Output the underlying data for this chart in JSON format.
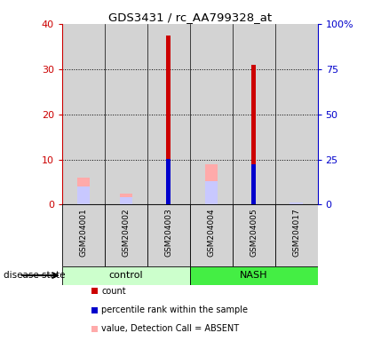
{
  "title": "GDS3431 / rc_AA799328_at",
  "samples": [
    "GSM204001",
    "GSM204002",
    "GSM204003",
    "GSM204004",
    "GSM204005",
    "GSM204017"
  ],
  "groups": [
    "control",
    "control",
    "control",
    "NASH",
    "NASH",
    "NASH"
  ],
  "group_labels": [
    "control",
    "NASH"
  ],
  "count_values": [
    0,
    0,
    37.5,
    0,
    31,
    0
  ],
  "percentile_values": [
    0,
    0,
    25.5,
    0,
    22.5,
    0
  ],
  "value_absent": [
    6,
    2.5,
    0,
    9,
    0,
    0
  ],
  "rank_absent": [
    10,
    4,
    0,
    13,
    0,
    1
  ],
  "ylim_left": [
    0,
    40
  ],
  "ylim_right": [
    0,
    100
  ],
  "yticks_left": [
    0,
    10,
    20,
    30,
    40
  ],
  "yticks_right": [
    0,
    25,
    50,
    75,
    100
  ],
  "ytick_labels_right": [
    "0",
    "25",
    "50",
    "75",
    "100%"
  ],
  "color_count": "#cc0000",
  "color_percentile": "#0000cc",
  "color_value_absent": "#ffaaaa",
  "color_rank_absent": "#c8c8ff",
  "bar_bg": "#d3d3d3",
  "green_light": "#ccffcc",
  "green_dark": "#44ee44"
}
